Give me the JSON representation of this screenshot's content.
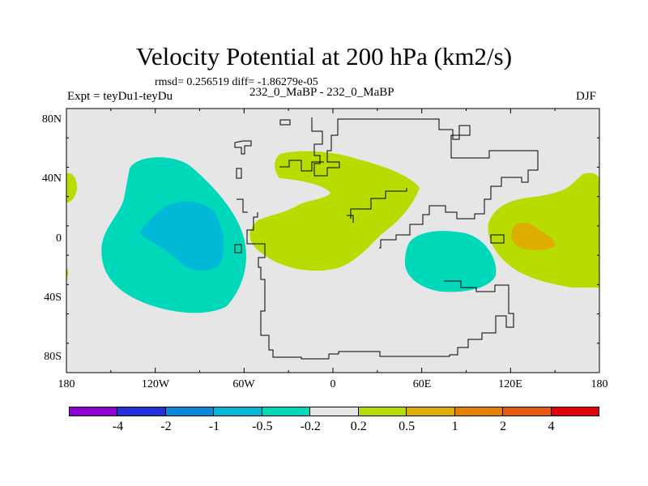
{
  "title": "Velocity Potential at 200 hPa (km2/s)",
  "stats": "rmsd= 0.256519 diff= -1.86279e-05",
  "experiment": "Expt = teyDu1-teyDu",
  "case": "232_0_MaBP - 232_0_MaBP",
  "season": "DJF",
  "lat_labels": [
    "80N",
    "40N",
    "0",
    "40S",
    "80S"
  ],
  "lon_labels": [
    "180",
    "120W",
    "60W",
    "0",
    "60E",
    "120E",
    "180"
  ],
  "colorbar": {
    "colors": [
      "#8f00d8",
      "#2430dc",
      "#0a87d8",
      "#00b9d6",
      "#00d9b9",
      "#e6e6e6",
      "#b9dc00",
      "#ddae00",
      "#e28200",
      "#e45a10",
      "#e00010"
    ],
    "labels": [
      "-4",
      "-2",
      "-1",
      "-0.5",
      "-0.2",
      "0.2",
      "0.5",
      "1",
      "2",
      "4"
    ]
  }
}
